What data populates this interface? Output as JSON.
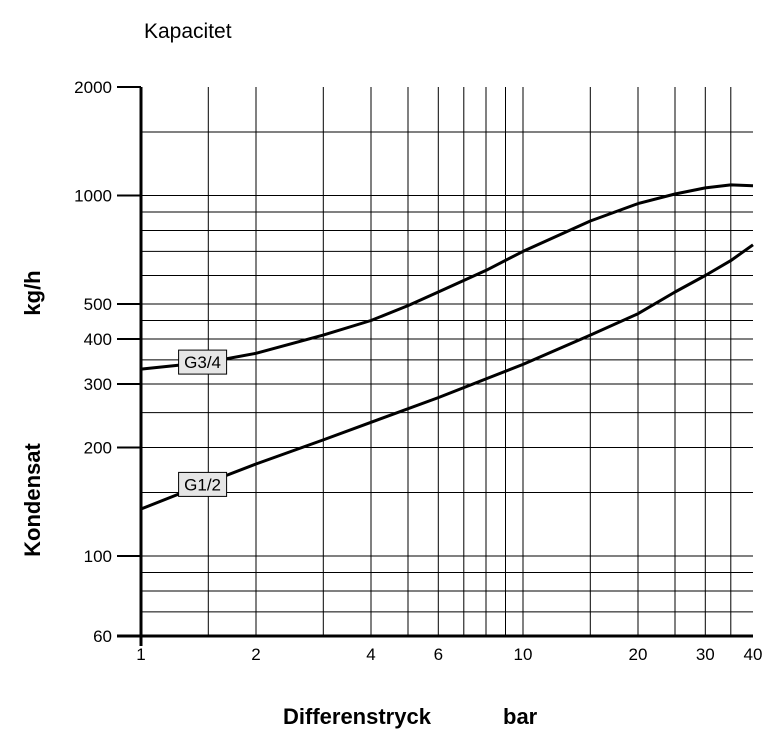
{
  "chart_data": {
    "type": "line",
    "title": "Kapacitet",
    "xlabel": "Differenstryck",
    "xunit": "bar",
    "ylabel": "Kondensat",
    "yunit": "kg/h",
    "xscale": "log",
    "yscale": "log",
    "xlim": [
      1,
      40
    ],
    "ylim": [
      60,
      2000
    ],
    "grid": true,
    "x_ticks": [
      1,
      2,
      4,
      6,
      10,
      20,
      30,
      40
    ],
    "x_tick_labels": [
      "1",
      "2",
      "4",
      "6",
      "10",
      "20",
      "30",
      "40"
    ],
    "y_ticks": [
      60,
      100,
      200,
      300,
      400,
      500,
      1000,
      2000
    ],
    "y_tick_labels": [
      "60",
      "100",
      "200",
      "300",
      "400",
      "500",
      "1000",
      "2000"
    ],
    "series": [
      {
        "name": "G3/4",
        "x": [
          1,
          1.5,
          2,
          3,
          4,
          5,
          6,
          8,
          10,
          15,
          20,
          25,
          30,
          35,
          40
        ],
        "y": [
          330,
          345,
          365,
          410,
          450,
          495,
          540,
          620,
          700,
          850,
          950,
          1010,
          1050,
          1070,
          1065
        ]
      },
      {
        "name": "G1/2",
        "x": [
          1,
          1.5,
          2,
          3,
          4,
          6,
          8,
          10,
          15,
          20,
          25,
          30,
          35,
          40
        ],
        "y": [
          135,
          160,
          180,
          210,
          235,
          275,
          310,
          340,
          410,
          470,
          540,
          600,
          660,
          730
        ]
      }
    ]
  }
}
